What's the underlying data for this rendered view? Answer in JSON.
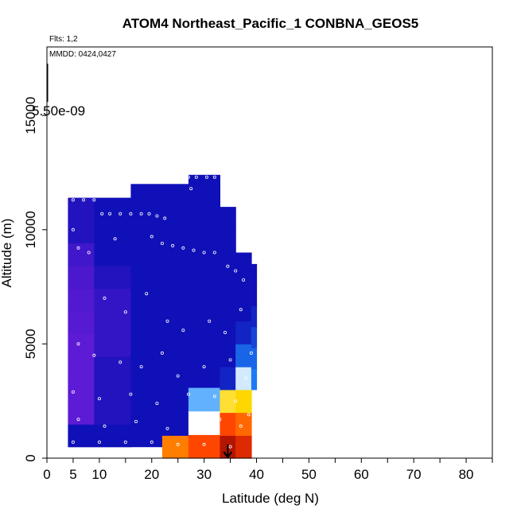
{
  "chart_data": {
    "type": "heatmap",
    "title": "ATOM4 Northeast_Pacific_1 CONBNA_GEOS5",
    "flights_label": "Flts: 1,2",
    "dates_label": "MMDD: 0424,0427",
    "scale_label": "5.50e-09",
    "xlabel": "Latitude (deg N)",
    "ylabel": "Altitude (m)",
    "xlim": [
      0,
      85
    ],
    "ylim": [
      0,
      18000
    ],
    "xticks": [
      0,
      5,
      10,
      20,
      30,
      40,
      50,
      60,
      70,
      80
    ],
    "xtick_labels": [
      "0",
      "5",
      "10",
      "20",
      "30",
      "40",
      "50",
      "60",
      "70",
      "80"
    ],
    "yticks": [
      0,
      5000,
      10000,
      15000
    ],
    "ytick_labels": [
      "0",
      "5000",
      "10000",
      "15000"
    ],
    "grid": false,
    "colors": {
      "low": "#7B1FE0",
      "mid_low": "#1010B8",
      "mid": "#1E90FF",
      "white": "#FFFFFF",
      "mid_high": "#FFD700",
      "high": "#FF3B00",
      "max": "#8B0000"
    },
    "curtain_columns": [
      {
        "lat": [
          4.0,
          9.0
        ],
        "alt": [
          500,
          11400
        ],
        "levels": [
          0.25,
          0.05,
          0.05,
          0.05,
          0.05,
          0.06,
          0.07,
          0.08,
          0.1,
          0.15,
          0.15
        ]
      },
      {
        "lat": [
          9.0,
          16.0
        ],
        "alt": [
          500,
          11400
        ],
        "levels": [
          0.3,
          0.15,
          0.15,
          0.15,
          0.12,
          0.12,
          0.12,
          0.15,
          0.18,
          0.22,
          0.22
        ]
      },
      {
        "lat": [
          16.0,
          22.0
        ],
        "alt": [
          500,
          12000
        ],
        "levels": [
          0.33,
          0.22,
          0.22,
          0.22,
          0.22,
          0.22,
          0.22,
          0.22,
          0.22,
          0.22,
          0.22,
          0.22
        ]
      },
      {
        "lat": [
          22.0,
          27.0
        ],
        "alt": [
          0,
          12000
        ],
        "levels": [
          0.8,
          0.4,
          0.28,
          0.26,
          0.24,
          0.24,
          0.24,
          0.24,
          0.24,
          0.24,
          0.24,
          0.24
        ]
      },
      {
        "lat": [
          27.0,
          33.0
        ],
        "alt": [
          0,
          12400
        ],
        "levels": [
          0.85,
          0.62,
          0.55,
          0.36,
          0.26,
          0.25,
          0.25,
          0.25,
          0.25,
          0.25,
          0.25,
          0.25
        ]
      },
      {
        "lat": [
          33.0,
          36.0
        ],
        "alt": [
          0,
          11000
        ],
        "levels": [
          0.95,
          0.85,
          0.7,
          0.42,
          0.3,
          0.25,
          0.26,
          0.28,
          0.3,
          0.28,
          0.26
        ]
      },
      {
        "lat": [
          36.0,
          39.0
        ],
        "alt": [
          0,
          9000
        ],
        "levels": [
          0.9,
          0.82,
          0.72,
          0.6,
          0.48,
          0.42,
          0.38,
          0.35,
          0.33
        ]
      },
      {
        "lat": [
          39.0,
          40.0
        ],
        "alt": [
          3000,
          8500
        ],
        "levels": [
          0.5,
          0.48,
          0.45,
          0.42,
          0.38,
          0.35
        ]
      }
    ],
    "sample_points": [
      {
        "lat": 5.0,
        "alt": 11300
      },
      {
        "lat": 7.0,
        "alt": 11300
      },
      {
        "lat": 9.0,
        "alt": 11300
      },
      {
        "lat": 10.5,
        "alt": 10700
      },
      {
        "lat": 12.0,
        "alt": 10700
      },
      {
        "lat": 14.0,
        "alt": 10700
      },
      {
        "lat": 16.0,
        "alt": 10700
      },
      {
        "lat": 18.0,
        "alt": 10700
      },
      {
        "lat": 19.5,
        "alt": 10700
      },
      {
        "lat": 21.0,
        "alt": 10600
      },
      {
        "lat": 22.5,
        "alt": 10500
      },
      {
        "lat": 5.0,
        "alt": 10000
      },
      {
        "lat": 6.0,
        "alt": 9200
      },
      {
        "lat": 13.0,
        "alt": 9600
      },
      {
        "lat": 20.0,
        "alt": 9700
      },
      {
        "lat": 22.0,
        "alt": 9400
      },
      {
        "lat": 24.0,
        "alt": 9300
      },
      {
        "lat": 26.0,
        "alt": 9200
      },
      {
        "lat": 28.0,
        "alt": 9100
      },
      {
        "lat": 30.0,
        "alt": 9000
      },
      {
        "lat": 32.0,
        "alt": 9000
      },
      {
        "lat": 34.5,
        "alt": 8400
      },
      {
        "lat": 36.0,
        "alt": 8200
      },
      {
        "lat": 37.5,
        "alt": 7800
      },
      {
        "lat": 27.0,
        "alt": 12300
      },
      {
        "lat": 28.5,
        "alt": 12300
      },
      {
        "lat": 30.5,
        "alt": 12300
      },
      {
        "lat": 32.0,
        "alt": 12300
      },
      {
        "lat": 27.5,
        "alt": 11800
      },
      {
        "lat": 8.0,
        "alt": 9000
      },
      {
        "lat": 11.0,
        "alt": 7000
      },
      {
        "lat": 15.0,
        "alt": 6400
      },
      {
        "lat": 19.0,
        "alt": 7200
      },
      {
        "lat": 23.0,
        "alt": 6000
      },
      {
        "lat": 26.0,
        "alt": 5600
      },
      {
        "lat": 31.0,
        "alt": 6000
      },
      {
        "lat": 34.0,
        "alt": 5500
      },
      {
        "lat": 37.0,
        "alt": 6500
      },
      {
        "lat": 6.0,
        "alt": 5000
      },
      {
        "lat": 9.0,
        "alt": 4500
      },
      {
        "lat": 14.0,
        "alt": 4200
      },
      {
        "lat": 18.0,
        "alt": 4000
      },
      {
        "lat": 22.0,
        "alt": 4600
      },
      {
        "lat": 25.0,
        "alt": 3600
      },
      {
        "lat": 30.0,
        "alt": 4000
      },
      {
        "lat": 35.0,
        "alt": 4300
      },
      {
        "lat": 38.0,
        "alt": 3500
      },
      {
        "lat": 5.0,
        "alt": 2900
      },
      {
        "lat": 10.0,
        "alt": 2600
      },
      {
        "lat": 16.0,
        "alt": 2800
      },
      {
        "lat": 21.0,
        "alt": 2400
      },
      {
        "lat": 27.0,
        "alt": 2800
      },
      {
        "lat": 32.0,
        "alt": 2700
      },
      {
        "lat": 36.0,
        "alt": 2500
      },
      {
        "lat": 6.0,
        "alt": 1700
      },
      {
        "lat": 11.0,
        "alt": 1400
      },
      {
        "lat": 17.0,
        "alt": 1600
      },
      {
        "lat": 23.0,
        "alt": 1300
      },
      {
        "lat": 28.0,
        "alt": 1500
      },
      {
        "lat": 33.0,
        "alt": 1700
      },
      {
        "lat": 37.0,
        "alt": 1400
      },
      {
        "lat": 5.0,
        "alt": 700
      },
      {
        "lat": 10.0,
        "alt": 700
      },
      {
        "lat": 15.0,
        "alt": 700
      },
      {
        "lat": 20.0,
        "alt": 700
      },
      {
        "lat": 25.0,
        "alt": 600
      },
      {
        "lat": 30.0,
        "alt": 600
      },
      {
        "lat": 35.0,
        "alt": 500
      },
      {
        "lat": 38.5,
        "alt": 1900
      },
      {
        "lat": 39.0,
        "alt": 4600
      }
    ],
    "marker": {
      "lat": 34.5,
      "alt_top": 600,
      "alt_bottom": 0
    }
  }
}
